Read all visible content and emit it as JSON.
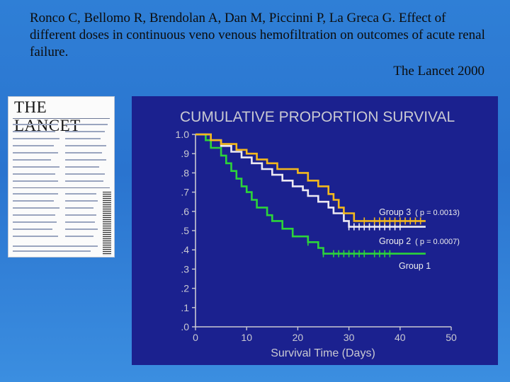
{
  "citation": {
    "text": "Ronco C, Bellomo R, Brendolan A, Dan M, Piccinni P, La Greca G. Effect of different doses in continuous veno venous hemofiltration on outcomes of acute renal failure.",
    "journal": "The Lancet 2000"
  },
  "thumbnail": {
    "logo": "THE LANCET"
  },
  "colors": {
    "panel_bg": "#1b218f",
    "group1": "#2cd43a",
    "group2": "#ece9f2",
    "group3": "#f3b81d",
    "title": "#f3b81d",
    "text": "#c9c9d2"
  },
  "chart_data": {
    "type": "line",
    "step": true,
    "title": "CUMULATIVE PROPORTION SURVIVAL",
    "xlabel": "Survival Time (Days)",
    "ylabel": "",
    "xlim": [
      0,
      50
    ],
    "ylim": [
      0,
      1.0
    ],
    "x_ticks": [
      "0",
      "10",
      "20",
      "30",
      "40",
      "50"
    ],
    "y_ticks": [
      ".0",
      ".1",
      ".2",
      ".3",
      ".4",
      ".5",
      ".6",
      ".7",
      ".8",
      ".9",
      "1.0"
    ],
    "series": [
      {
        "name": "Group 3",
        "annotation": "( p = 0.0013)",
        "color": "#f3b81d",
        "censored_x": [
          33,
          35,
          36,
          37,
          38,
          39,
          40,
          41,
          42,
          43,
          44
        ],
        "points": [
          [
            0,
            1.0
          ],
          [
            3,
            1.0
          ],
          [
            3,
            0.97
          ],
          [
            5,
            0.97
          ],
          [
            5,
            0.95
          ],
          [
            8,
            0.95
          ],
          [
            8,
            0.92
          ],
          [
            10,
            0.92
          ],
          [
            10,
            0.9
          ],
          [
            12,
            0.9
          ],
          [
            12,
            0.87
          ],
          [
            14,
            0.87
          ],
          [
            14,
            0.85
          ],
          [
            16,
            0.85
          ],
          [
            16,
            0.82
          ],
          [
            20,
            0.82
          ],
          [
            20,
            0.8
          ],
          [
            22,
            0.8
          ],
          [
            22,
            0.76
          ],
          [
            24,
            0.76
          ],
          [
            24,
            0.73
          ],
          [
            26,
            0.73
          ],
          [
            26,
            0.69
          ],
          [
            27,
            0.69
          ],
          [
            27,
            0.66
          ],
          [
            28,
            0.66
          ],
          [
            28,
            0.62
          ],
          [
            29,
            0.62
          ],
          [
            29,
            0.59
          ],
          [
            31,
            0.59
          ],
          [
            31,
            0.55
          ],
          [
            45,
            0.55
          ]
        ]
      },
      {
        "name": "Group 2",
        "annotation": "( p = 0.0007)",
        "color": "#ece9f2",
        "censored_x": [
          30,
          31,
          32,
          33,
          34,
          35,
          36,
          37,
          38,
          39,
          40
        ],
        "points": [
          [
            0,
            1.0
          ],
          [
            3,
            1.0
          ],
          [
            3,
            0.97
          ],
          [
            5,
            0.97
          ],
          [
            5,
            0.94
          ],
          [
            7,
            0.94
          ],
          [
            7,
            0.91
          ],
          [
            9,
            0.91
          ],
          [
            9,
            0.88
          ],
          [
            11,
            0.88
          ],
          [
            11,
            0.85
          ],
          [
            13,
            0.85
          ],
          [
            13,
            0.82
          ],
          [
            15,
            0.82
          ],
          [
            15,
            0.79
          ],
          [
            17,
            0.79
          ],
          [
            17,
            0.76
          ],
          [
            19,
            0.76
          ],
          [
            19,
            0.73
          ],
          [
            21,
            0.73
          ],
          [
            21,
            0.71
          ],
          [
            22,
            0.71
          ],
          [
            22,
            0.68
          ],
          [
            24,
            0.68
          ],
          [
            24,
            0.65
          ],
          [
            26,
            0.65
          ],
          [
            26,
            0.62
          ],
          [
            27,
            0.62
          ],
          [
            27,
            0.59
          ],
          [
            29,
            0.59
          ],
          [
            29,
            0.55
          ],
          [
            30,
            0.55
          ],
          [
            30,
            0.52
          ],
          [
            45,
            0.52
          ]
        ]
      },
      {
        "name": "Group 1",
        "color": "#2cd43a",
        "censored_x": [
          22,
          25,
          27,
          28,
          29,
          30,
          31,
          32,
          33,
          35,
          36,
          37,
          38
        ],
        "points": [
          [
            0,
            1.0
          ],
          [
            2,
            1.0
          ],
          [
            2,
            0.97
          ],
          [
            3,
            0.97
          ],
          [
            3,
            0.93
          ],
          [
            5,
            0.93
          ],
          [
            5,
            0.89
          ],
          [
            6,
            0.89
          ],
          [
            6,
            0.85
          ],
          [
            7,
            0.85
          ],
          [
            7,
            0.81
          ],
          [
            8,
            0.81
          ],
          [
            8,
            0.77
          ],
          [
            9,
            0.77
          ],
          [
            9,
            0.73
          ],
          [
            10,
            0.73
          ],
          [
            10,
            0.7
          ],
          [
            11,
            0.7
          ],
          [
            11,
            0.66
          ],
          [
            12,
            0.66
          ],
          [
            12,
            0.62
          ],
          [
            14,
            0.62
          ],
          [
            14,
            0.58
          ],
          [
            15,
            0.58
          ],
          [
            15,
            0.55
          ],
          [
            17,
            0.55
          ],
          [
            17,
            0.51
          ],
          [
            19,
            0.51
          ],
          [
            19,
            0.47
          ],
          [
            22,
            0.47
          ],
          [
            22,
            0.44
          ],
          [
            24,
            0.44
          ],
          [
            24,
            0.41
          ],
          [
            25,
            0.41
          ],
          [
            25,
            0.38
          ],
          [
            45,
            0.38
          ]
        ]
      }
    ]
  }
}
